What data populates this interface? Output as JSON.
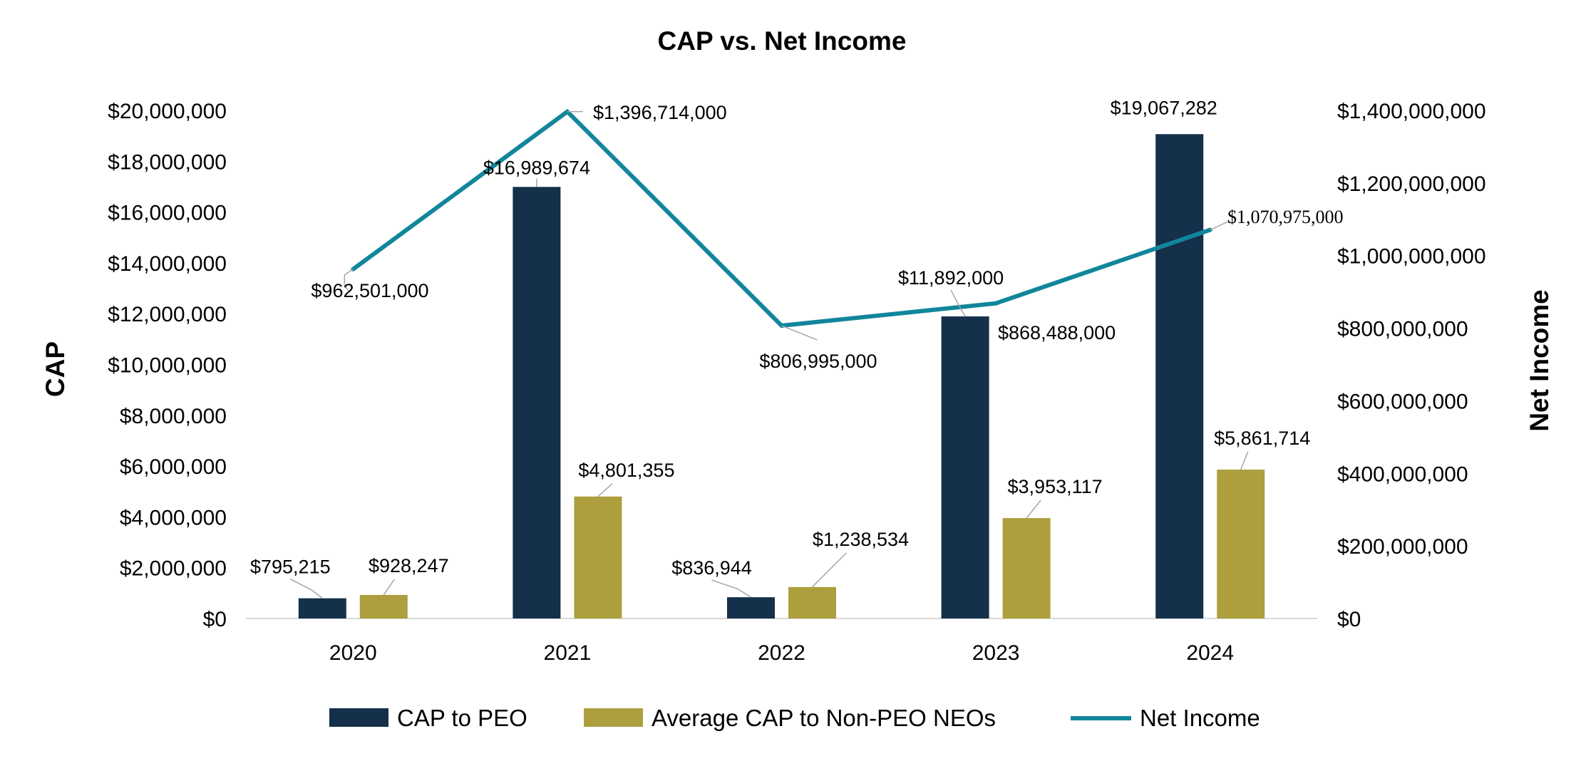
{
  "chart_data": {
    "type": "bar",
    "title": "CAP vs. Net Income",
    "ylabel": "CAP",
    "y2label": "Net Income",
    "categories": [
      "2020",
      "2021",
      "2022",
      "2023",
      "2024"
    ],
    "ylim": [
      0,
      20000000
    ],
    "y2lim": [
      0,
      1400000000
    ],
    "y_ticks": [
      "$0",
      "$2,000,000",
      "$4,000,000",
      "$6,000,000",
      "$8,000,000",
      "$10,000,000",
      "$12,000,000",
      "$14,000,000",
      "$16,000,000",
      "$18,000,000",
      "$20,000,000"
    ],
    "y2_ticks": [
      "$0",
      "$200,000,000",
      "$400,000,000",
      "$600,000,000",
      "$800,000,000",
      "$1,000,000,000",
      "$1,200,000,000",
      "$1,400,000,000"
    ],
    "legend_position": "bottom",
    "series": [
      {
        "name": "CAP to PEO",
        "type": "bar",
        "axis": "left",
        "color": "#14304a",
        "values": [
          795215,
          16989674,
          836944,
          11892000,
          19067282
        ],
        "labels": [
          "$795,215",
          "$16,989,674",
          "$836,944",
          "$11,892,000",
          "$19,067,282"
        ]
      },
      {
        "name": "Average CAP to Non-PEO NEOs",
        "type": "bar",
        "axis": "left",
        "color": "#ad9f3e",
        "values": [
          928247,
          4801355,
          1238534,
          3953117,
          5861714
        ],
        "labels": [
          "$928,247",
          "$4,801,355",
          "$1,238,534",
          "$3,953,117",
          "$5,861,714"
        ]
      },
      {
        "name": "Net Income",
        "type": "line",
        "axis": "right",
        "color": "#11869b",
        "values": [
          962501000,
          1396714000,
          806995000,
          868488000,
          1070975000
        ],
        "labels": [
          "$962,501,000",
          "$1,396,714,000",
          "$806,995,000",
          "$868,488,000",
          "$1,070,975,000"
        ]
      }
    ]
  }
}
